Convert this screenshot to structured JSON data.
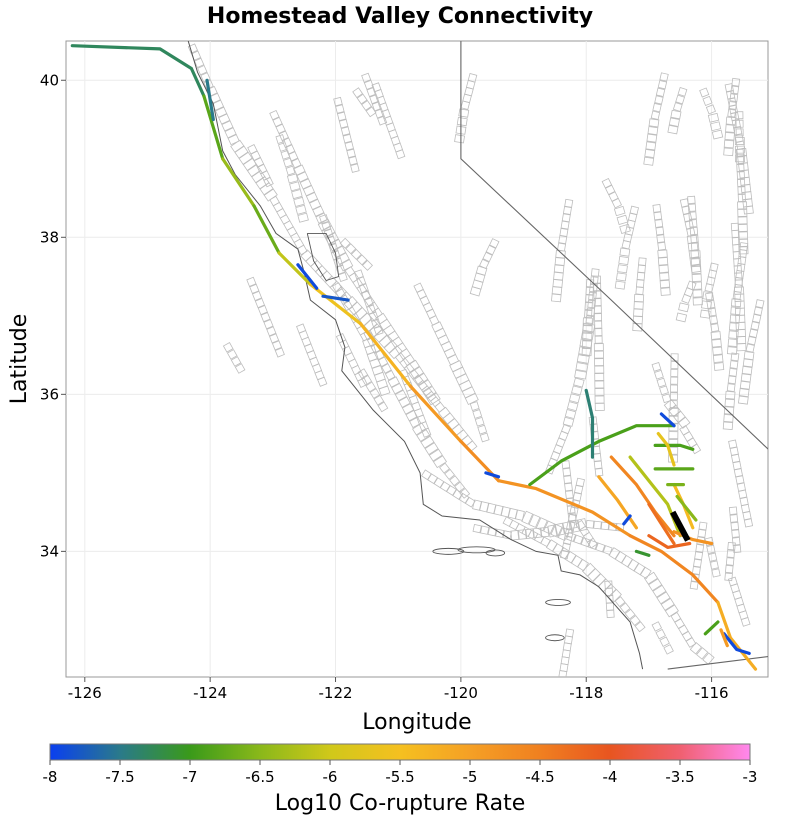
{
  "title": "Homestead Valley Connectivity",
  "x_axis": {
    "label": "Longitude",
    "ticks": [
      -126,
      -124,
      -122,
      -120,
      -118,
      -116
    ],
    "range": [
      -126.3,
      -115.1
    ]
  },
  "y_axis": {
    "label": "Latitude",
    "ticks": [
      34,
      36,
      38,
      40
    ],
    "range": [
      32.4,
      40.5
    ]
  },
  "colorbar": {
    "label": "Log10 Co-rupture Rate",
    "ticks": [
      "-8",
      "-7.5",
      "-7",
      "-6.5",
      "-6",
      "-5.5",
      "-5",
      "-4.5",
      "-4",
      "-3.5",
      "-3"
    ],
    "range": [
      -8,
      -3
    ],
    "stops": [
      {
        "v": -8,
        "color": "#0a3ff0"
      },
      {
        "v": -7.5,
        "color": "#2a7a8a"
      },
      {
        "v": -7,
        "color": "#3a9a1a"
      },
      {
        "v": -6.5,
        "color": "#8ab81a"
      },
      {
        "v": -6,
        "color": "#d0c81a"
      },
      {
        "v": -5.5,
        "color": "#f5c020"
      },
      {
        "v": -5,
        "color": "#f5a025"
      },
      {
        "v": -4.5,
        "color": "#f08020"
      },
      {
        "v": -4,
        "color": "#e85520"
      },
      {
        "v": -3.5,
        "color": "#f06070"
      },
      {
        "v": -3,
        "color": "#ff88ee"
      }
    ]
  },
  "colors": {
    "background_faults": "#bdbdbd",
    "coast": "#555555",
    "state_border": "#666666",
    "target_fault": "#000000",
    "grid": "#ececec"
  },
  "chart_data": {
    "type": "map",
    "target_fault": {
      "name": "Homestead Valley",
      "points": [
        [
          -116.62,
          34.5
        ],
        [
          -116.38,
          34.14
        ]
      ]
    },
    "ruptures": [
      {
        "id": "san-andreas-north",
        "segments": [
          {
            "v": -7.3,
            "points": [
              [
                -126.2,
                40.44
              ],
              [
                -124.8,
                40.4
              ],
              [
                -124.3,
                40.15
              ],
              [
                -124.1,
                39.8
              ]
            ]
          },
          {
            "v": -6.8,
            "points": [
              [
                -124.1,
                39.8
              ],
              [
                -123.8,
                39.0
              ]
            ]
          },
          {
            "v": -6.4,
            "points": [
              [
                -123.8,
                39.0
              ],
              [
                -123.3,
                38.4
              ]
            ]
          },
          {
            "v": -6.7,
            "points": [
              [
                -123.3,
                38.4
              ],
              [
                -122.9,
                37.8
              ]
            ]
          },
          {
            "v": -6.1,
            "points": [
              [
                -122.9,
                37.8
              ],
              [
                -122.4,
                37.4
              ]
            ]
          },
          {
            "v": -5.6,
            "points": [
              [
                -122.4,
                37.4
              ],
              [
                -121.6,
                36.9
              ]
            ]
          },
          {
            "v": -5.3,
            "points": [
              [
                -121.6,
                36.9
              ],
              [
                -120.8,
                36.1
              ]
            ]
          },
          {
            "v": -4.9,
            "points": [
              [
                -120.8,
                36.1
              ],
              [
                -120.0,
                35.4
              ]
            ]
          },
          {
            "v": -4.7,
            "points": [
              [
                -120.0,
                35.4
              ],
              [
                -119.4,
                34.9
              ]
            ]
          }
        ]
      },
      {
        "id": "san-andreas-south",
        "segments": [
          {
            "v": -4.8,
            "points": [
              [
                -119.4,
                34.9
              ],
              [
                -118.8,
                34.8
              ],
              [
                -117.9,
                34.5
              ],
              [
                -117.3,
                34.2
              ]
            ]
          },
          {
            "v": -4.6,
            "points": [
              [
                -117.3,
                34.2
              ],
              [
                -116.8,
                34.0
              ],
              [
                -116.3,
                33.7
              ],
              [
                -115.9,
                33.35
              ]
            ]
          },
          {
            "v": -5.2,
            "points": [
              [
                -115.9,
                33.35
              ],
              [
                -115.7,
                32.9
              ],
              [
                -115.5,
                32.7
              ],
              [
                -115.3,
                32.5
              ]
            ]
          }
        ]
      },
      {
        "id": "garlock",
        "segments": [
          {
            "v": -6.9,
            "points": [
              [
                -118.9,
                34.85
              ],
              [
                -118.4,
                35.15
              ],
              [
                -117.8,
                35.4
              ],
              [
                -117.2,
                35.6
              ],
              [
                -116.6,
                35.6
              ]
            ]
          }
        ]
      },
      {
        "id": "kern",
        "segments": [
          {
            "v": -7.4,
            "points": [
              [
                -118.0,
                36.05
              ],
              [
                -117.9,
                35.7
              ],
              [
                -117.9,
                35.2
              ]
            ]
          }
        ]
      },
      {
        "id": "death-valley-s",
        "segments": [
          {
            "v": -7.9,
            "points": [
              [
                -116.8,
                35.75
              ],
              [
                -116.6,
                35.6
              ]
            ]
          }
        ]
      },
      {
        "id": "calico",
        "segments": [
          {
            "v": -6.2,
            "points": [
              [
                -117.3,
                35.2
              ],
              [
                -117.0,
                34.9
              ],
              [
                -116.7,
                34.6
              ],
              [
                -116.5,
                34.2
              ]
            ]
          }
        ]
      },
      {
        "id": "lenwood",
        "segments": [
          {
            "v": -4.6,
            "points": [
              [
                -117.6,
                35.2
              ],
              [
                -117.2,
                34.85
              ],
              [
                -116.9,
                34.5
              ],
              [
                -116.6,
                34.2
              ]
            ]
          }
        ]
      },
      {
        "id": "helendale",
        "segments": [
          {
            "v": -5.1,
            "points": [
              [
                -117.8,
                34.95
              ],
              [
                -117.5,
                34.65
              ],
              [
                -117.2,
                34.3
              ]
            ]
          }
        ]
      },
      {
        "id": "johnson-valley",
        "segments": [
          {
            "v": -4.3,
            "points": [
              [
                -117.0,
                34.6
              ],
              [
                -116.8,
                34.35
              ],
              [
                -116.6,
                34.1
              ]
            ]
          }
        ]
      },
      {
        "id": "landers",
        "segments": [
          {
            "v": -5.4,
            "points": [
              [
                -116.6,
                34.85
              ],
              [
                -116.45,
                34.6
              ],
              [
                -116.3,
                34.3
              ]
            ]
          }
        ]
      },
      {
        "id": "camp-rock",
        "segments": [
          {
            "v": -6.5,
            "points": [
              [
                -116.55,
                34.7
              ],
              [
                -116.4,
                34.55
              ],
              [
                -116.25,
                34.4
              ]
            ]
          }
        ]
      },
      {
        "id": "pisgah",
        "segments": [
          {
            "v": -6.6,
            "points": [
              [
                -116.7,
                34.85
              ],
              [
                -116.45,
                34.85
              ]
            ]
          }
        ]
      },
      {
        "id": "bullion",
        "segments": [
          {
            "v": -6.8,
            "points": [
              [
                -116.9,
                35.05
              ],
              [
                -116.3,
                35.05
              ]
            ]
          }
        ]
      },
      {
        "id": "ludlow",
        "segments": [
          {
            "v": -6.9,
            "points": [
              [
                -116.9,
                35.35
              ],
              [
                -116.5,
                35.35
              ],
              [
                -116.3,
                35.3
              ]
            ]
          }
        ]
      },
      {
        "id": "cady",
        "segments": [
          {
            "v": -5.7,
            "points": [
              [
                -116.85,
                35.5
              ],
              [
                -116.7,
                35.35
              ],
              [
                -116.6,
                35.1
              ]
            ]
          }
        ]
      },
      {
        "id": "south-frontal",
        "segments": [
          {
            "v": -4.8,
            "points": [
              [
                -116.6,
                34.25
              ],
              [
                -116.3,
                34.15
              ],
              [
                -116.0,
                34.1
              ]
            ]
          }
        ]
      },
      {
        "id": "north-frontal",
        "segments": [
          {
            "v": -4.2,
            "points": [
              [
                -117.0,
                34.2
              ],
              [
                -116.7,
                34.05
              ],
              [
                -116.35,
                34.1
              ]
            ]
          }
        ]
      },
      {
        "id": "pinto",
        "segments": [
          {
            "v": -7.1,
            "points": [
              [
                -117.2,
                34.0
              ],
              [
                -117.0,
                33.95
              ]
            ]
          }
        ]
      },
      {
        "id": "san-jacinto-s",
        "segments": [
          {
            "v": -6.9,
            "points": [
              [
                -116.1,
                32.95
              ],
              [
                -115.9,
                33.1
              ]
            ]
          }
        ]
      },
      {
        "id": "elsinore-s",
        "segments": [
          {
            "v": -7.9,
            "points": [
              [
                -115.8,
                32.95
              ],
              [
                -115.6,
                32.75
              ],
              [
                -115.4,
                32.7
              ]
            ]
          }
        ]
      },
      {
        "id": "hayward-n",
        "segments": [
          {
            "v": -7.9,
            "points": [
              [
                -122.6,
                37.65
              ],
              [
                -122.3,
                37.35
              ]
            ]
          }
        ]
      },
      {
        "id": "calaveras-n",
        "segments": [
          {
            "v": -7.8,
            "points": [
              [
                -122.2,
                37.25
              ],
              [
                -121.8,
                37.2
              ]
            ]
          }
        ]
      },
      {
        "id": "maacama",
        "segments": [
          {
            "v": -7.5,
            "points": [
              [
                -124.05,
                40.0
              ],
              [
                -123.95,
                39.5
              ]
            ]
          }
        ]
      },
      {
        "id": "big-pine",
        "segments": [
          {
            "v": -7.9,
            "points": [
              [
                -119.6,
                35.0
              ],
              [
                -119.4,
                34.95
              ]
            ]
          }
        ]
      },
      {
        "id": "sierra-madre",
        "segments": [
          {
            "v": -7.9,
            "points": [
              [
                -117.4,
                34.35
              ],
              [
                -117.3,
                34.45
              ]
            ]
          }
        ]
      },
      {
        "id": "coachella-tail",
        "segments": [
          {
            "v": -4.9,
            "points": [
              [
                -115.85,
                33.0
              ],
              [
                -115.75,
                32.8
              ]
            ]
          }
        ]
      }
    ]
  }
}
